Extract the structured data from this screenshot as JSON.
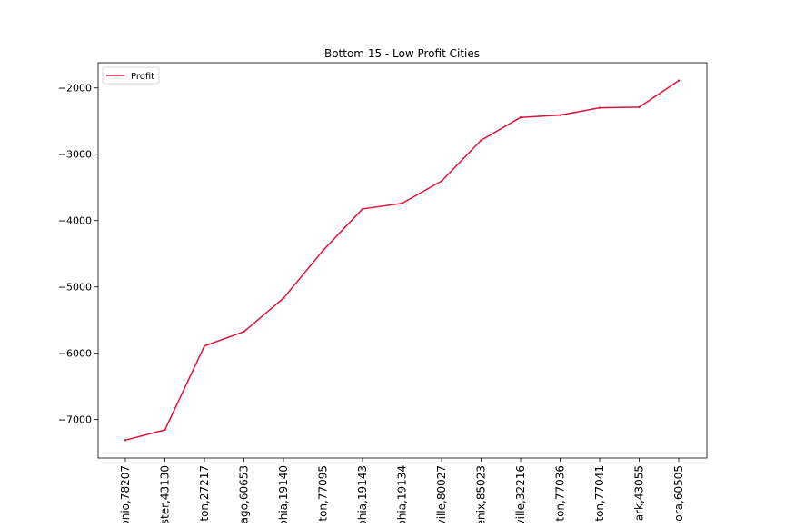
{
  "chart_data": {
    "type": "line",
    "title": "Bottom 15 - Low Profit Cities",
    "xlabel": "",
    "ylabel": "",
    "categories": [
      "onio,78207",
      "ster,43130",
      "ton,27217",
      "ago,60653",
      "phia,19140",
      "ton,77095",
      "phia,19143",
      "phia,19134",
      "ville,80027",
      "enix,85023",
      "ville,32216",
      "ton,77036",
      "ton,77041",
      "ark,43055",
      "ora,60505"
    ],
    "series": [
      {
        "name": "Profit",
        "color": "#dc143c",
        "values": [
          -7310,
          -7155,
          -5890,
          -5675,
          -5170,
          -4450,
          -3825,
          -3740,
          -3405,
          -2790,
          -2445,
          -2410,
          -2300,
          -2290,
          -1890
        ]
      }
    ],
    "yticks": [
      -7000,
      -6000,
      -5000,
      -4000,
      -3000,
      -2000
    ],
    "ytick_labels": [
      "−7000",
      "−6000",
      "−5000",
      "−4000",
      "−3000",
      "−2000"
    ],
    "ylim": [
      -7580,
      -1620
    ],
    "legend": "top-left",
    "grid": false
  }
}
